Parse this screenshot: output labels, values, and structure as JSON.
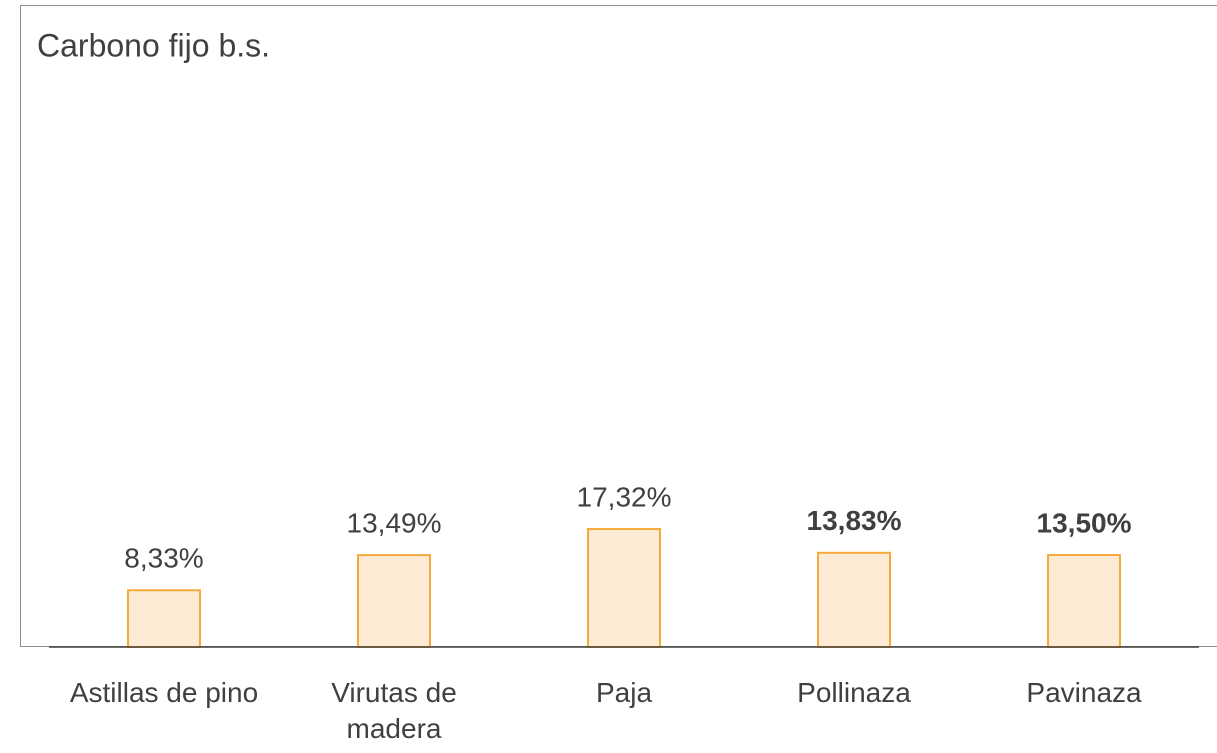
{
  "chart_data": {
    "type": "bar",
    "title": "Carbono fijo b.s.",
    "categories": [
      "Astillas de pino",
      "Virutas de madera",
      "Paja",
      "Pollinaza",
      "Pavinaza"
    ],
    "values": [
      8.33,
      13.49,
      17.32,
      13.83,
      13.5
    ],
    "value_labels": [
      "8,33%",
      "13,49%",
      "17,32%",
      "13,83%",
      "13,50%"
    ],
    "value_label_bold": [
      false,
      false,
      false,
      true,
      true
    ],
    "color": "#fdebd6",
    "edge_color": "#f5a93a",
    "ylim": [
      0,
      90
    ]
  }
}
